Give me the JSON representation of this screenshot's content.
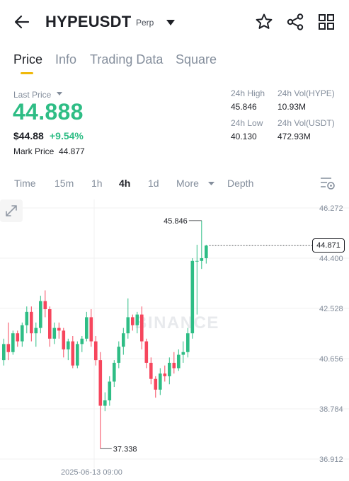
{
  "header": {
    "pair": "HYPEUSDT",
    "tag": "Perp",
    "icons": [
      "arrow-left-icon",
      "caret-down-icon",
      "star-icon",
      "share-icon",
      "grid-icon"
    ]
  },
  "tabs": [
    {
      "label": "Price",
      "active": true
    },
    {
      "label": "Info",
      "active": false
    },
    {
      "label": "Trading Data",
      "active": false
    },
    {
      "label": "Square",
      "active": false
    }
  ],
  "ticker": {
    "last_price_label": "Last Price",
    "last_price": "44.888",
    "fiat_price": "$44.88",
    "change": "+9.54%",
    "mark_price_label": "Mark Price",
    "mark_price": "44.877",
    "high_label": "24h High",
    "high": "45.846",
    "low_label": "24h Low",
    "low": "40.130",
    "vol_base_label": "24h Vol(HYPE)",
    "vol_base": "10.93M",
    "vol_quote_label": "24h Vol(USDT)",
    "vol_quote": "472.93M"
  },
  "intervals": [
    {
      "label": "Time",
      "active": false
    },
    {
      "label": "15m",
      "active": false
    },
    {
      "label": "1h",
      "active": false
    },
    {
      "label": "4h",
      "active": true
    },
    {
      "label": "1d",
      "active": false
    },
    {
      "label": "More",
      "active": false
    },
    {
      "label": "Depth",
      "active": false
    }
  ],
  "colors": {
    "up": "#2ebd85",
    "down": "#f6465d",
    "accent": "#f0b90b"
  },
  "chart_data": {
    "type": "candlestick",
    "ylim": [
      36.912,
      46.272
    ],
    "y_ticks": [
      "46.272",
      "44.400",
      "42.528",
      "40.656",
      "38.784",
      "36.912"
    ],
    "x_label": "2025-06-13 09:00",
    "current_price": "44.871",
    "high_annotation": "45.846",
    "low_annotation": "37.338",
    "watermark": "BINANCE",
    "candles": [
      [
        40.6,
        41.4,
        40.4,
        41.2
      ],
      [
        41.2,
        42.0,
        40.6,
        40.9
      ],
      [
        40.9,
        41.7,
        40.8,
        41.6
      ],
      [
        41.6,
        41.7,
        41.1,
        41.3
      ],
      [
        41.3,
        42.0,
        41.1,
        41.9
      ],
      [
        41.9,
        42.6,
        41.6,
        42.4
      ],
      [
        42.4,
        42.6,
        41.3,
        41.6
      ],
      [
        41.6,
        42.0,
        41.1,
        41.8
      ],
      [
        41.8,
        43.0,
        41.6,
        42.8
      ],
      [
        42.8,
        43.2,
        42.2,
        42.5
      ],
      [
        42.5,
        42.6,
        41.1,
        41.4
      ],
      [
        41.4,
        42.0,
        41.2,
        41.8
      ],
      [
        41.8,
        42.0,
        41.4,
        41.7
      ],
      [
        41.7,
        41.8,
        40.7,
        41.0
      ],
      [
        41.0,
        41.4,
        40.6,
        41.3
      ],
      [
        41.3,
        41.5,
        40.3,
        40.4
      ],
      [
        40.4,
        41.3,
        40.3,
        41.2
      ],
      [
        41.2,
        41.5,
        40.9,
        41.4
      ],
      [
        41.4,
        42.4,
        41.3,
        42.2
      ],
      [
        42.2,
        42.5,
        41.1,
        41.3
      ],
      [
        41.3,
        41.5,
        40.4,
        40.6
      ],
      [
        40.6,
        40.9,
        37.3,
        38.9
      ],
      [
        38.9,
        39.4,
        38.7,
        39.1
      ],
      [
        39.1,
        40.0,
        38.9,
        39.8
      ],
      [
        39.8,
        40.6,
        39.6,
        40.5
      ],
      [
        40.5,
        41.3,
        40.3,
        41.1
      ],
      [
        41.1,
        41.8,
        40.8,
        41.6
      ],
      [
        41.6,
        42.9,
        41.4,
        42.2
      ],
      [
        42.2,
        42.3,
        41.7,
        41.9
      ],
      [
        41.9,
        42.4,
        41.6,
        42.3
      ],
      [
        42.3,
        42.6,
        41.0,
        41.3
      ],
      [
        41.3,
        41.4,
        40.3,
        40.5
      ],
      [
        40.5,
        40.7,
        39.7,
        39.9
      ],
      [
        39.9,
        40.0,
        39.2,
        39.5
      ],
      [
        39.5,
        40.3,
        39.3,
        40.1
      ],
      [
        40.1,
        40.4,
        39.8,
        40.0
      ],
      [
        40.0,
        40.7,
        39.7,
        40.5
      ],
      [
        40.5,
        40.9,
        40.1,
        40.3
      ],
      [
        40.3,
        41.0,
        40.2,
        40.8
      ],
      [
        40.8,
        41.3,
        40.5,
        40.9
      ],
      [
        40.9,
        41.8,
        40.7,
        41.6
      ],
      [
        41.6,
        44.4,
        41.4,
        44.3
      ],
      [
        44.3,
        44.9,
        42.3,
        44.3
      ],
      [
        44.3,
        45.8,
        44.0,
        44.4
      ],
      [
        44.4,
        44.9,
        44.2,
        44.87
      ]
    ]
  }
}
